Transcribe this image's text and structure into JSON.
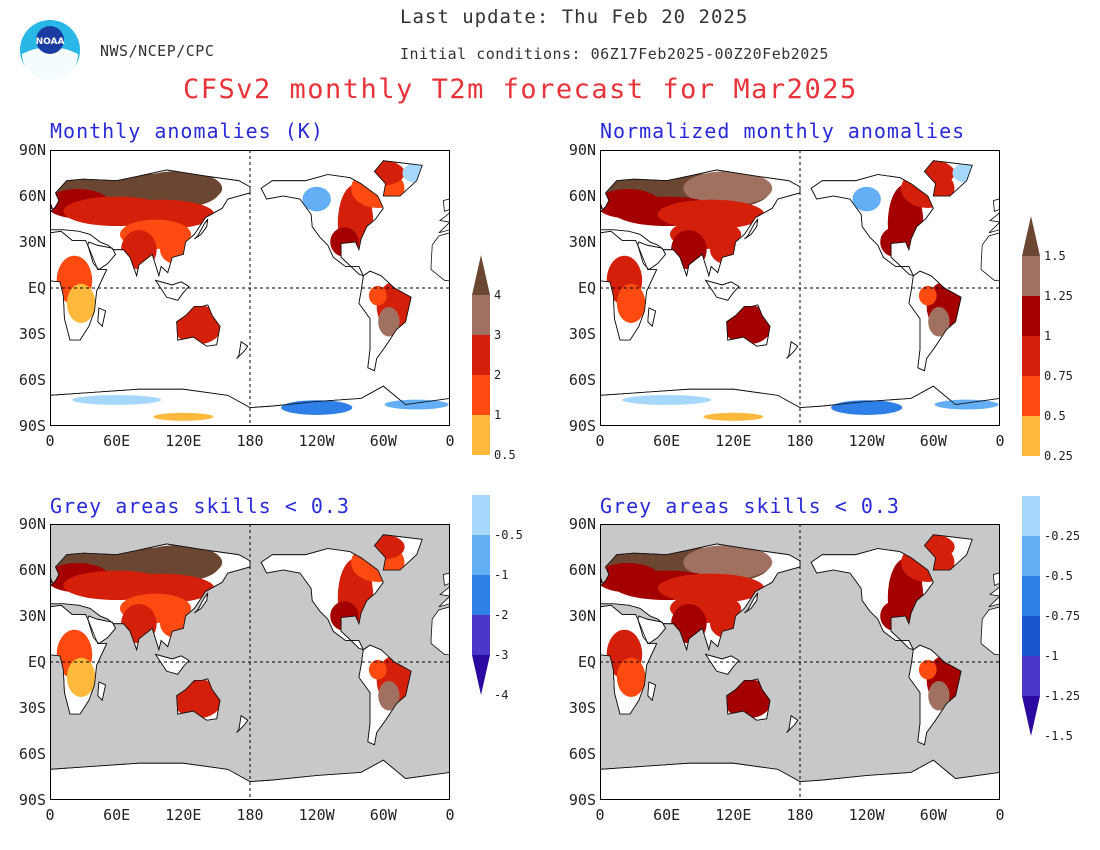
{
  "header": {
    "last_update": "Last update: Thu Feb 20 2025",
    "agency": "NWS/NCEP/CPC",
    "initial_conditions": "Initial conditions: 06Z17Feb2025-00Z20Feb2025",
    "title": "CFSv2 monthly T2m forecast for Mar2025",
    "logo_text": "NOAA"
  },
  "panels": [
    {
      "id": "raw",
      "title": "Monthly anomalies (K)",
      "masked": false
    },
    {
      "id": "norm",
      "title": "Normalized monthly anomalies",
      "masked": false
    },
    {
      "id": "raw-masked",
      "title": "Grey areas skills < 0.3",
      "masked": true
    },
    {
      "id": "norm-masked",
      "title": "Grey areas skills < 0.3",
      "masked": true
    }
  ],
  "axes": {
    "lat_ticks": [
      "90N",
      "60N",
      "30N",
      "EQ",
      "30S",
      "60S",
      "90S"
    ],
    "lon_ticks": [
      "0",
      "60E",
      "120E",
      "180",
      "120W",
      "60W",
      "0"
    ]
  },
  "colorbars": [
    {
      "id": "kelvin",
      "labels": [
        "4",
        "3",
        "2",
        "1",
        "0.5",
        "-0.5",
        "-1",
        "-2",
        "-3",
        "-4"
      ]
    },
    {
      "id": "normalized",
      "labels": [
        "1.5",
        "1.25",
        "1",
        "0.75",
        "0.5",
        "0.25",
        "-0.25",
        "-0.5",
        "-0.75",
        "-1",
        "-1.25",
        "-1.5"
      ]
    }
  ],
  "colors": {
    "warm": [
      "#fdb93c",
      "#fc4a10",
      "#d41f0a",
      "#a40000",
      "#a07060",
      "#6b4632"
    ],
    "cold": [
      "#a6d8fb",
      "#63aef5",
      "#2e80e8",
      "#1a56cc",
      "#4b38c9",
      "#2a0aa0"
    ],
    "neutral": "#ffffff",
    "skill_mask": "#c8c8c8",
    "title_red": "#e8333a",
    "panel_title_blue": "#2a2ad8"
  }
}
